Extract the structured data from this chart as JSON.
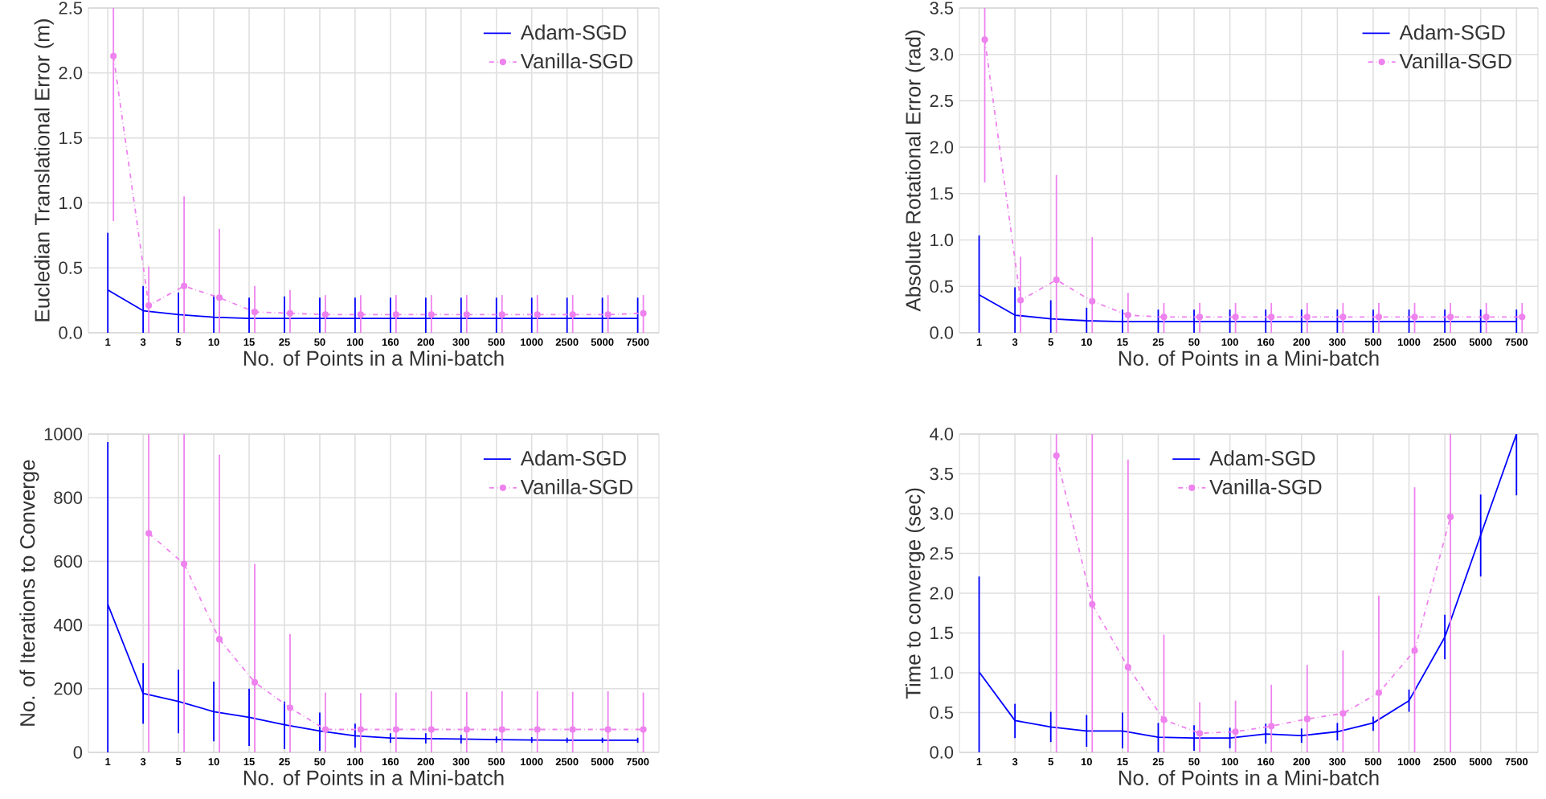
{
  "chart_data": [
    {
      "type": "line",
      "xlabel": "No. of Points in a Mini-batch",
      "ylabel": "Eucledian Translational Error (m)",
      "categories": [
        "1",
        "3",
        "5",
        "10",
        "15",
        "25",
        "50",
        "100",
        "160",
        "200",
        "300",
        "500",
        "1000",
        "2500",
        "5000",
        "7500"
      ],
      "ylim": [
        0,
        2.5
      ],
      "yticks": [
        {
          "value": 0,
          "label": "0.0"
        },
        {
          "value": 0.5,
          "label": "0.5"
        },
        {
          "value": 1,
          "label": "1.0"
        },
        {
          "value": 1.5,
          "label": "1.5"
        },
        {
          "value": 2,
          "label": "2.0"
        },
        {
          "value": 2.5,
          "label": "2.5"
        }
      ],
      "grid": true,
      "legend": "top right",
      "series": [
        {
          "name": "Adam-SGD",
          "color": "#0000ff",
          "marker": "none",
          "line_style": "solid",
          "values": [
            0.33,
            0.17,
            0.14,
            0.12,
            0.11,
            0.11,
            0.11,
            0.11,
            0.11,
            0.11,
            0.11,
            0.11,
            0.11,
            0.11,
            0.11,
            0.11
          ],
          "errors": [
            [
              0,
              0.77
            ],
            [
              0,
              0.36
            ],
            [
              0,
              0.31
            ],
            [
              0,
              0.29
            ],
            [
              0,
              0.27
            ],
            [
              0,
              0.28
            ],
            [
              0,
              0.27
            ],
            [
              0,
              0.27
            ],
            [
              0,
              0.27
            ],
            [
              0,
              0.27
            ],
            [
              0,
              0.27
            ],
            [
              0,
              0.27
            ],
            [
              0,
              0.27
            ],
            [
              0,
              0.27
            ],
            [
              0,
              0.27
            ],
            [
              0,
              0.27
            ]
          ]
        },
        {
          "name": "Vanilla-SGD",
          "color": "#ee82ee",
          "marker": "circle",
          "line_style": "dashed",
          "values": [
            2.13,
            0.21,
            0.36,
            0.27,
            0.16,
            0.15,
            0.14,
            0.14,
            0.14,
            0.14,
            0.14,
            0.14,
            0.14,
            0.14,
            0.14,
            0.15
          ],
          "errors": [
            [
              0.86,
              2.5
            ],
            [
              0,
              0.51
            ],
            [
              0,
              1.05
            ],
            [
              0,
              0.8
            ],
            [
              0,
              0.36
            ],
            [
              0,
              0.33
            ],
            [
              0,
              0.29
            ],
            [
              0,
              0.29
            ],
            [
              0,
              0.29
            ],
            [
              0,
              0.29
            ],
            [
              0,
              0.29
            ],
            [
              0,
              0.29
            ],
            [
              0,
              0.29
            ],
            [
              0,
              0.29
            ],
            [
              0,
              0.29
            ],
            [
              0,
              0.29
            ]
          ]
        }
      ]
    },
    {
      "type": "line",
      "xlabel": "No. of Points in a Mini-batch",
      "ylabel": "Absolute Rotational Error (rad)",
      "categories": [
        "1",
        "3",
        "5",
        "10",
        "15",
        "25",
        "50",
        "100",
        "160",
        "200",
        "300",
        "500",
        "1000",
        "2500",
        "5000",
        "7500"
      ],
      "ylim": [
        0,
        3.5
      ],
      "yticks": [
        {
          "value": 0,
          "label": "0.0"
        },
        {
          "value": 0.5,
          "label": "0.5"
        },
        {
          "value": 1,
          "label": "1.0"
        },
        {
          "value": 1.5,
          "label": "1.5"
        },
        {
          "value": 2,
          "label": "2.0"
        },
        {
          "value": 2.5,
          "label": "2.5"
        },
        {
          "value": 3,
          "label": "3.0"
        },
        {
          "value": 3.5,
          "label": "3.5"
        }
      ],
      "grid": true,
      "legend": "top right",
      "series": [
        {
          "name": "Adam-SGD",
          "color": "#0000ff",
          "marker": "none",
          "line_style": "solid",
          "values": [
            0.41,
            0.19,
            0.15,
            0.13,
            0.12,
            0.12,
            0.12,
            0.12,
            0.12,
            0.12,
            0.12,
            0.12,
            0.12,
            0.12,
            0.12,
            0.12
          ],
          "errors": [
            [
              0,
              1.05
            ],
            [
              0,
              0.49
            ],
            [
              0,
              0.35
            ],
            [
              0,
              0.27
            ],
            [
              0,
              0.25
            ],
            [
              0,
              0.25
            ],
            [
              0,
              0.25
            ],
            [
              0,
              0.25
            ],
            [
              0,
              0.25
            ],
            [
              0,
              0.25
            ],
            [
              0,
              0.25
            ],
            [
              0,
              0.25
            ],
            [
              0,
              0.25
            ],
            [
              0,
              0.25
            ],
            [
              0,
              0.25
            ],
            [
              0,
              0.25
            ]
          ]
        },
        {
          "name": "Vanilla-SGD",
          "color": "#ee82ee",
          "marker": "circle",
          "line_style": "dashed",
          "values": [
            3.16,
            0.35,
            0.57,
            0.34,
            0.19,
            0.17,
            0.17,
            0.17,
            0.17,
            0.17,
            0.17,
            0.17,
            0.17,
            0.17,
            0.17,
            0.17
          ],
          "errors": [
            [
              1.62,
              3.5
            ],
            [
              0,
              0.82
            ],
            [
              0,
              1.7
            ],
            [
              0,
              1.03
            ],
            [
              0,
              0.43
            ],
            [
              0,
              0.32
            ],
            [
              0,
              0.32
            ],
            [
              0,
              0.32
            ],
            [
              0,
              0.32
            ],
            [
              0,
              0.32
            ],
            [
              0,
              0.32
            ],
            [
              0,
              0.32
            ],
            [
              0,
              0.32
            ],
            [
              0,
              0.32
            ],
            [
              0,
              0.32
            ],
            [
              0,
              0.32
            ]
          ]
        }
      ]
    },
    {
      "type": "line",
      "xlabel": "No. of Points in a Mini-batch",
      "ylabel": "No. of Iterations to Converge",
      "categories": [
        "1",
        "3",
        "5",
        "10",
        "15",
        "25",
        "50",
        "100",
        "160",
        "200",
        "300",
        "500",
        "1000",
        "2500",
        "5000",
        "7500"
      ],
      "ylim": [
        0,
        1000
      ],
      "yticks": [
        0,
        200,
        400,
        600,
        800,
        1000
      ],
      "grid": true,
      "legend": "top right",
      "series": [
        {
          "name": "Adam-SGD",
          "color": "#0000ff",
          "marker": "none",
          "line_style": "solid",
          "values": [
            465,
            185,
            160,
            128,
            110,
            87,
            67,
            52,
            45,
            43,
            42,
            40,
            39,
            38,
            38,
            38
          ],
          "errors": [
            [
              0,
              975
            ],
            [
              90,
              280
            ],
            [
              60,
              260
            ],
            [
              35,
              222
            ],
            [
              20,
              200
            ],
            [
              10,
              160
            ],
            [
              5,
              125
            ],
            [
              15,
              90
            ],
            [
              30,
              60
            ],
            [
              28,
              60
            ],
            [
              28,
              55
            ],
            [
              30,
              50
            ],
            [
              30,
              48
            ],
            [
              30,
              46
            ],
            [
              30,
              46
            ],
            [
              30,
              46
            ]
          ]
        },
        {
          "name": "Vanilla-SGD",
          "color": "#ee82ee",
          "marker": "circle",
          "line_style": "dashed",
          "values": [
            null,
            688,
            592,
            355,
            220,
            140,
            72,
            72,
            72,
            72,
            72,
            72,
            72,
            72,
            72,
            72
          ],
          "errors": [
            null,
            [
              0,
              1000
            ],
            [
              0,
              1000
            ],
            [
              0,
              935
            ],
            [
              0,
              592
            ],
            [
              0,
              372
            ],
            [
              0,
              188
            ],
            [
              0,
              186
            ],
            [
              0,
              188
            ],
            [
              0,
              192
            ],
            [
              0,
              190
            ],
            [
              0,
              192
            ],
            [
              0,
              192
            ],
            [
              0,
              190
            ],
            [
              0,
              192
            ],
            [
              0,
              188
            ]
          ]
        }
      ]
    },
    {
      "type": "line",
      "xlabel": "No. of Points in a Mini-batch",
      "ylabel": "Time to converge (sec)",
      "categories": [
        "1",
        "3",
        "5",
        "10",
        "15",
        "25",
        "50",
        "100",
        "160",
        "200",
        "300",
        "500",
        "1000",
        "2500",
        "5000",
        "7500"
      ],
      "ylim": [
        0,
        4
      ],
      "yticks": [
        {
          "value": 0,
          "label": "0.0"
        },
        {
          "value": 0.5,
          "label": "0.5"
        },
        {
          "value": 1,
          "label": "1.0"
        },
        {
          "value": 1.5,
          "label": "1.5"
        },
        {
          "value": 2,
          "label": "2.0"
        },
        {
          "value": 2.5,
          "label": "2.5"
        },
        {
          "value": 3,
          "label": "3.0"
        },
        {
          "value": 3.5,
          "label": "3.5"
        },
        {
          "value": 4,
          "label": "4.0"
        }
      ],
      "grid": true,
      "legend": "top",
      "series": [
        {
          "name": "Adam-SGD",
          "color": "#0000ff",
          "marker": "none",
          "line_style": "solid",
          "values": [
            1.01,
            0.4,
            0.32,
            0.27,
            0.27,
            0.19,
            0.18,
            0.18,
            0.23,
            0.21,
            0.26,
            0.37,
            0.65,
            1.45,
            2.73,
            4.0
          ],
          "errors": [
            [
              0,
              2.21
            ],
            [
              0.18,
              0.61
            ],
            [
              0.13,
              0.51
            ],
            [
              0.07,
              0.47
            ],
            [
              0.05,
              0.5
            ],
            [
              0,
              0.37
            ],
            [
              0.02,
              0.34
            ],
            [
              0.05,
              0.31
            ],
            [
              0.11,
              0.36
            ],
            [
              0.12,
              0.3
            ],
            [
              0.15,
              0.37
            ],
            [
              0.27,
              0.45
            ],
            [
              0.51,
              0.79
            ],
            [
              1.17,
              1.73
            ],
            [
              2.21,
              3.24
            ],
            [
              3.23,
              4.0
            ]
          ]
        },
        {
          "name": "Vanilla-SGD",
          "color": "#ee82ee",
          "marker": "circle",
          "line_style": "dashed",
          "values": [
            null,
            null,
            3.73,
            1.86,
            1.07,
            0.41,
            0.24,
            0.26,
            0.33,
            0.42,
            0.49,
            0.75,
            1.28,
            2.96,
            null,
            null
          ],
          "errors": [
            null,
            null,
            [
              0,
              4
            ],
            [
              0,
              4
            ],
            [
              0,
              3.68
            ],
            [
              0,
              1.48
            ],
            [
              0,
              0.63
            ],
            [
              0,
              0.65
            ],
            [
              0,
              0.85
            ],
            [
              0,
              1.1
            ],
            [
              0,
              1.28
            ],
            [
              0,
              1.97
            ],
            [
              0,
              3.33
            ],
            [
              0,
              4
            ],
            null,
            null
          ]
        }
      ]
    }
  ]
}
